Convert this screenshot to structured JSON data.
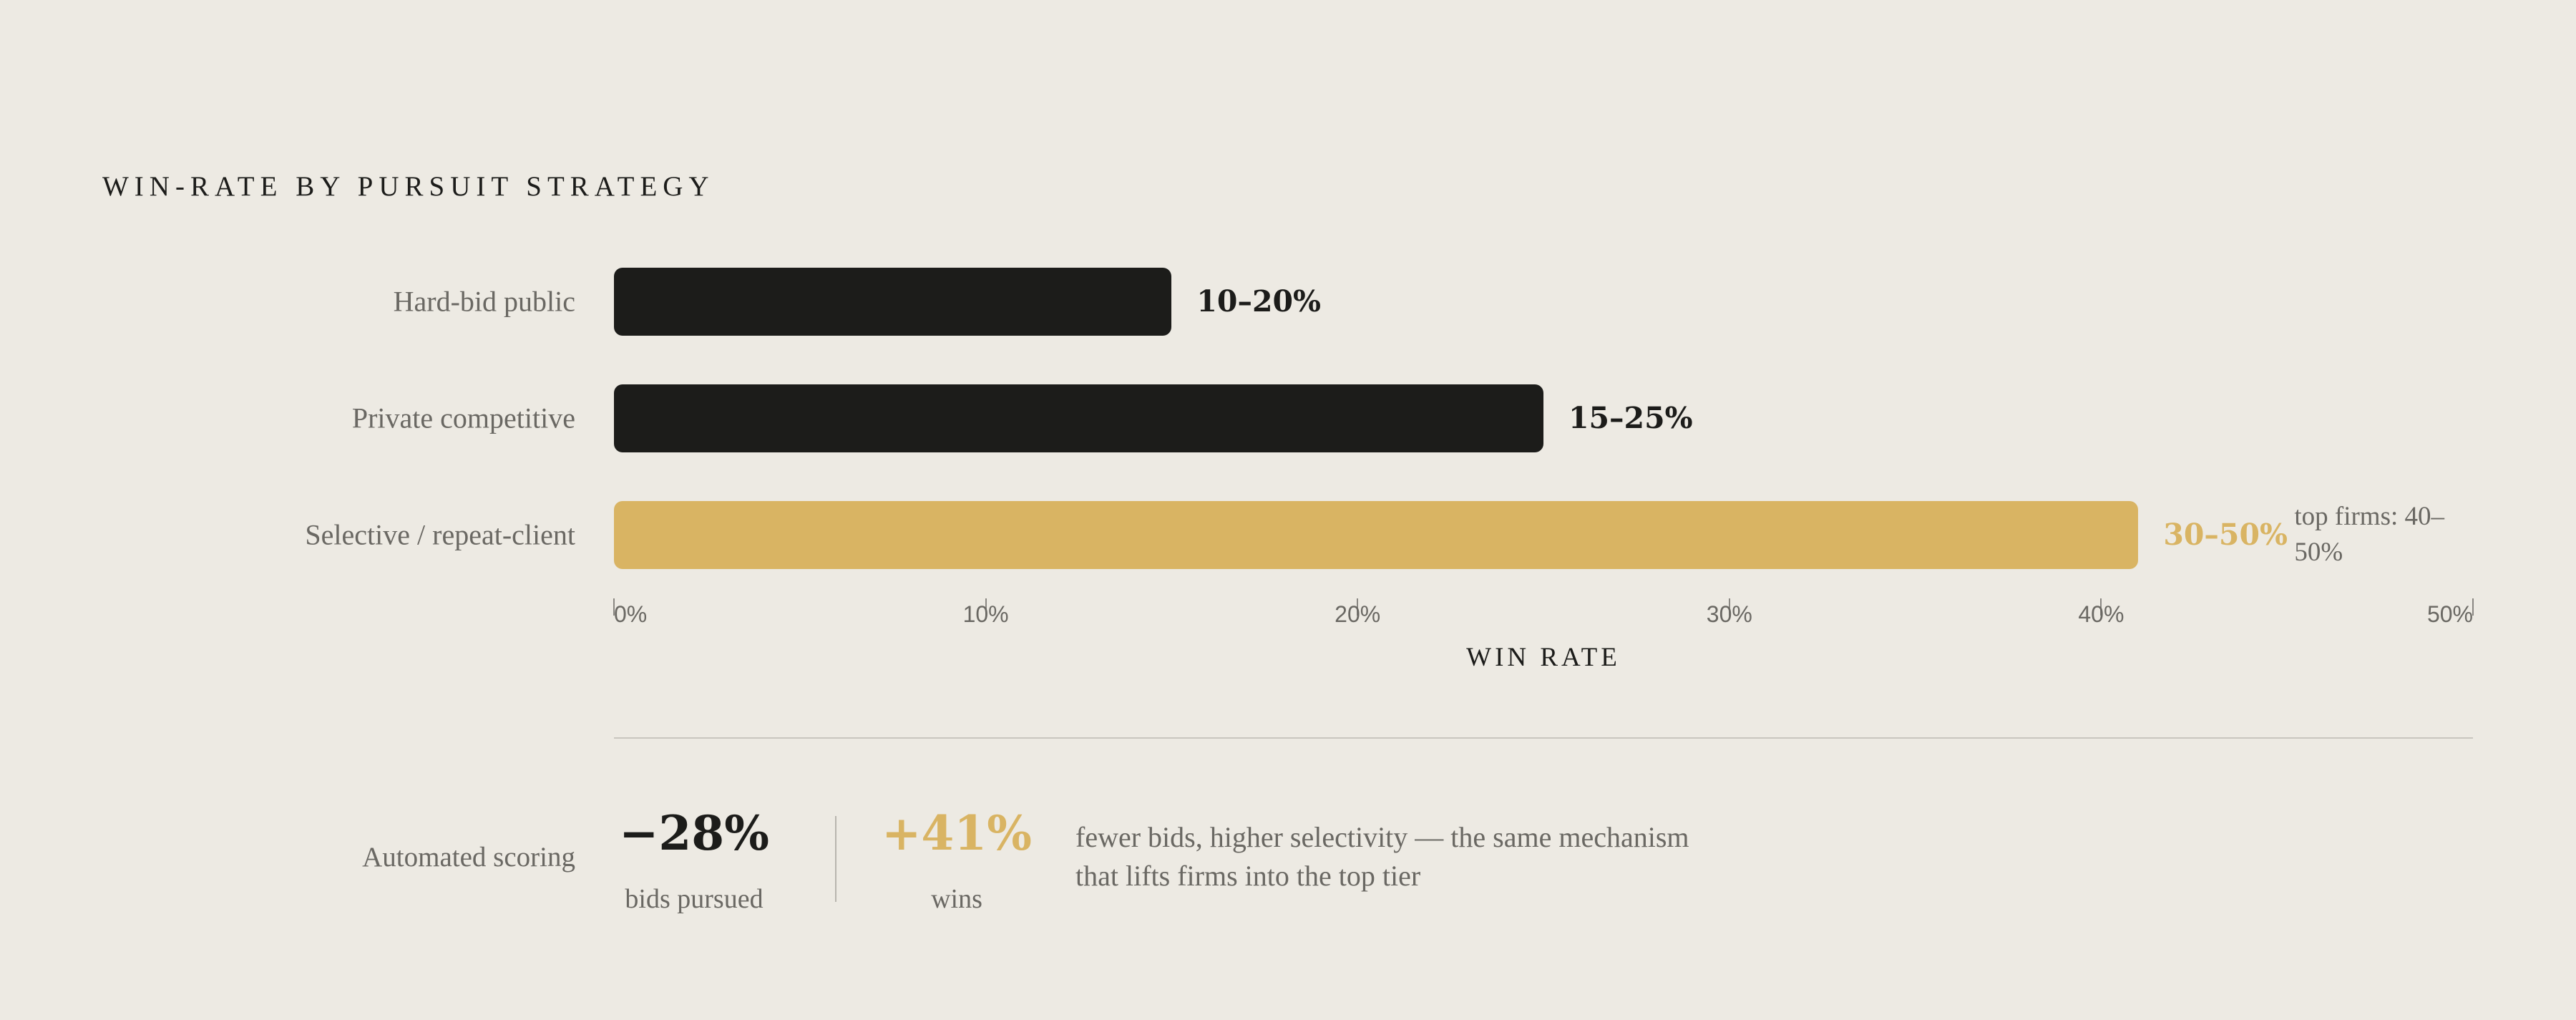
{
  "chart_data": {
    "type": "bar",
    "orientation": "horizontal",
    "title": "WIN-RATE BY PURSUIT STRATEGY",
    "xlabel": "WIN RATE",
    "xlim": [
      0,
      50
    ],
    "ticks": [
      "0%",
      "10%",
      "20%",
      "30%",
      "40%",
      "50%"
    ],
    "categories": [
      "Hard-bid public",
      "Private competitive",
      "Selective / repeat-client"
    ],
    "values": [
      15,
      25,
      41
    ],
    "ranges": [
      [
        10,
        20
      ],
      [
        15,
        25
      ],
      [
        30,
        50
      ]
    ],
    "value_labels": [
      "10–20%",
      "15–25%",
      "30–50%"
    ],
    "colors": [
      "#1C1C1A",
      "#1C1C1A",
      "#D9B463"
    ],
    "annotation": "top firms: 40–50%",
    "grid": false
  },
  "stats": {
    "row_label": "Automated scoring",
    "bids_value": "−28%",
    "bids_label": "bids pursued",
    "wins_value": "+41%",
    "wins_label": "wins",
    "description": "fewer bids, higher selectivity — the same mechanism that lifts firms into the top tier",
    "accent_color": "#D9B463"
  }
}
